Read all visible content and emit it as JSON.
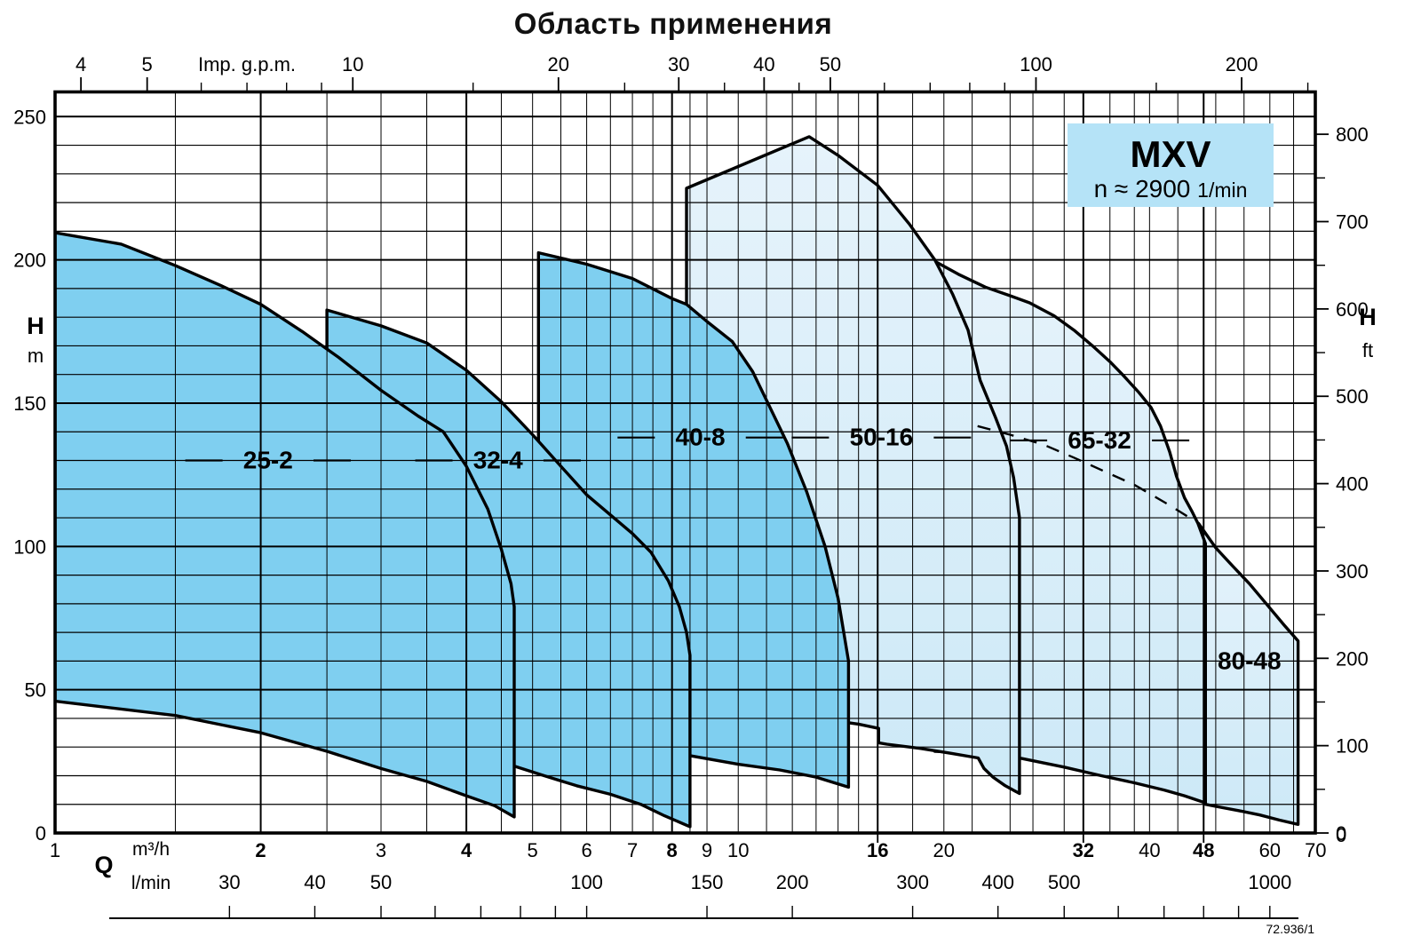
{
  "title": "Область применения",
  "badge": {
    "model": "MXV",
    "speed": "n ≈ 2900",
    "speed_unit": "1/min"
  },
  "footer_ref": "72.936/1",
  "colors": {
    "envelope_dark": "#7fcff0",
    "envelope_light_top": "#e6f3fb",
    "envelope_light_bottom": "#cde9f7",
    "badge_bg": "#b5e3f7",
    "line": "#000000"
  },
  "axes": {
    "top": {
      "unit_label": "Imp. g.p.m.",
      "major_ticks": [
        4,
        5,
        10,
        20,
        30,
        40,
        50,
        100,
        200
      ],
      "minor_ticks": [
        6,
        7,
        8,
        9,
        15,
        25,
        35,
        45,
        60,
        70,
        80,
        90,
        150,
        250
      ],
      "gpm_per_m3h": 3.666
    },
    "left": {
      "name": "H",
      "unit": "m",
      "labeled_ticks": [
        0,
        50,
        100,
        150,
        200,
        250
      ]
    },
    "right": {
      "name": "H",
      "unit": "ft",
      "labeled_ticks": [
        0,
        100,
        200,
        300,
        400,
        500,
        600,
        700,
        800
      ],
      "minor_ticks": [
        50,
        150,
        250,
        350,
        450,
        550,
        650,
        750
      ],
      "m_per_ft": 0.3048
    },
    "bottom": {
      "name": "Q",
      "unit1": "m³/h",
      "m3h_ticks": [
        {
          "v": 1,
          "bold": false
        },
        {
          "v": 2,
          "bold": true
        },
        {
          "v": 3,
          "bold": false
        },
        {
          "v": 4,
          "bold": true
        },
        {
          "v": 5,
          "bold": false
        },
        {
          "v": 6,
          "bold": false
        },
        {
          "v": 7,
          "bold": false
        },
        {
          "v": 8,
          "bold": true
        },
        {
          "v": 9,
          "bold": false
        },
        {
          "v": 10,
          "bold": false
        },
        {
          "v": 16,
          "bold": true
        },
        {
          "v": 20,
          "bold": false
        },
        {
          "v": 32,
          "bold": true
        },
        {
          "v": 40,
          "bold": false
        },
        {
          "v": 48,
          "bold": true
        },
        {
          "v": 60,
          "bold": false
        },
        {
          "v": 70,
          "bold": false
        }
      ],
      "tick_marks_m3h": [
        16,
        32,
        48
      ],
      "unit2": "l/min",
      "lmin_labels": [
        {
          "v": 30,
          "q": 1.8
        },
        {
          "v": 40,
          "q": 2.4
        },
        {
          "v": 50,
          "q": 3.0
        },
        {
          "v": 100,
          "q": 6.0
        },
        {
          "v": 150,
          "q": 9.0
        },
        {
          "v": 200,
          "q": 12.0
        },
        {
          "v": 300,
          "q": 18.0
        },
        {
          "v": 400,
          "q": 24.0
        },
        {
          "v": 500,
          "q": 30.0
        },
        {
          "v": 1000,
          "q": 60.0
        }
      ],
      "lmin_ruler_ticks_q": [
        1.8,
        2.4,
        3,
        3.6,
        4.2,
        4.8,
        5.4,
        6,
        9,
        12,
        18,
        24,
        30,
        36,
        42,
        48,
        54,
        60
      ]
    }
  },
  "chart_data": {
    "type": "area",
    "title": "Область применения",
    "x_scale": "log",
    "x_unit": "m³/h",
    "y_unit": "m",
    "x_range": [
      1,
      70
    ],
    "y_range": [
      0,
      258
    ],
    "grid": {
      "v_minor_m3h": [
        1.5,
        2.5,
        3,
        3.5,
        4.5,
        5,
        5.5,
        6,
        6.5,
        7,
        7.5,
        8.5,
        9,
        10,
        11,
        12,
        13,
        14,
        15,
        18,
        20,
        22,
        25,
        27,
        30,
        35,
        38,
        40,
        44,
        50,
        55,
        60,
        65
      ],
      "v_major_m3h": [
        2,
        4,
        8,
        16,
        32,
        48
      ],
      "h_step_m": 10,
      "h_major_step_m": 50
    },
    "envelopes": [
      {
        "name": "80-48",
        "shade": "light",
        "points": [
          [
            48.3,
            10
          ],
          [
            47.2,
            108
          ],
          [
            50,
            99.5
          ],
          [
            53,
            93
          ],
          [
            56,
            87
          ],
          [
            60,
            78.5
          ],
          [
            63,
            72.5
          ],
          [
            66,
            67
          ],
          [
            66,
            3
          ],
          [
            62,
            4.5
          ],
          [
            58,
            6.3
          ],
          [
            54,
            7.8
          ],
          [
            50,
            9.3
          ]
        ]
      },
      {
        "name": "65-32",
        "shade": "light",
        "points": [
          [
            19.4,
            28.5
          ],
          [
            19.4,
            199.5
          ],
          [
            21,
            195
          ],
          [
            23,
            190.5
          ],
          [
            25,
            187.5
          ],
          [
            26.7,
            185
          ],
          [
            29,
            180.5
          ],
          [
            31,
            175.5
          ],
          [
            33,
            170
          ],
          [
            35,
            164.5
          ],
          [
            36.5,
            160
          ],
          [
            38.5,
            154
          ],
          [
            40.2,
            148.5
          ],
          [
            41.5,
            142
          ],
          [
            42.8,
            133
          ],
          [
            43.8,
            124.5
          ],
          [
            45,
            117
          ],
          [
            46.2,
            112
          ],
          [
            47.1,
            108
          ],
          [
            48.3,
            101
          ],
          [
            48.3,
            10.5
          ],
          [
            45,
            13
          ],
          [
            42,
            15
          ],
          [
            38,
            17.5
          ],
          [
            34,
            20
          ],
          [
            30,
            23
          ],
          [
            26,
            26
          ],
          [
            23,
            27.8
          ]
        ]
      },
      {
        "name": "50-16",
        "shade": "light",
        "points": [
          [
            8.4,
            42
          ],
          [
            8.4,
            225
          ],
          [
            12.7,
            243
          ],
          [
            14,
            236.5
          ],
          [
            16,
            226
          ],
          [
            17.8,
            212.5
          ],
          [
            19.4,
            200
          ],
          [
            20.6,
            188
          ],
          [
            21.7,
            175.5
          ],
          [
            22.6,
            158
          ],
          [
            23.8,
            145
          ],
          [
            24.7,
            135
          ],
          [
            25.3,
            124
          ],
          [
            25.8,
            110
          ],
          [
            25.8,
            13.8
          ],
          [
            24.6,
            16.5
          ],
          [
            23.6,
            19.5
          ],
          [
            22.9,
            22.5
          ],
          [
            22.45,
            26.2
          ],
          [
            20.5,
            27.8
          ],
          [
            18.5,
            29.5
          ],
          [
            16.5,
            31
          ],
          [
            16.05,
            31.5
          ],
          [
            16.05,
            36.5
          ],
          [
            15,
            38
          ],
          [
            14,
            39
          ],
          [
            12,
            40.5
          ],
          [
            10,
            41.3
          ]
        ]
      },
      {
        "name": "40-8",
        "shade": "dark",
        "points": [
          [
            5.1,
            34
          ],
          [
            5.1,
            202.5
          ],
          [
            6,
            198.5
          ],
          [
            7,
            193.5
          ],
          [
            8,
            186.5
          ],
          [
            8.4,
            184.5
          ],
          [
            9,
            178.5
          ],
          [
            9.8,
            171.5
          ],
          [
            10.5,
            161
          ],
          [
            11,
            151
          ],
          [
            11.8,
            136
          ],
          [
            12.6,
            119
          ],
          [
            13.4,
            100
          ],
          [
            14,
            82
          ],
          [
            14.5,
            60
          ],
          [
            14.5,
            16
          ],
          [
            13,
            19.5
          ],
          [
            11.5,
            22
          ],
          [
            10,
            24
          ],
          [
            8.5,
            27
          ],
          [
            7,
            29.5
          ],
          [
            6,
            31.5
          ]
        ]
      },
      {
        "name": "32-4",
        "shade": "dark",
        "points": [
          [
            2.5,
            30
          ],
          [
            2.5,
            182.5
          ],
          [
            3,
            177
          ],
          [
            3.5,
            171
          ],
          [
            4,
            161.5
          ],
          [
            4.5,
            150.5
          ],
          [
            5,
            139
          ],
          [
            5.5,
            128
          ],
          [
            6,
            118
          ],
          [
            6.5,
            111
          ],
          [
            7,
            104.5
          ],
          [
            7.45,
            98
          ],
          [
            7.9,
            88
          ],
          [
            8.2,
            79
          ],
          [
            8.4,
            70
          ],
          [
            8.5,
            62
          ],
          [
            8.5,
            2.2
          ],
          [
            7.8,
            6
          ],
          [
            7.2,
            10
          ],
          [
            6.5,
            13.5
          ],
          [
            5.8,
            16.5
          ],
          [
            5.2,
            20
          ],
          [
            4.72,
            23.2
          ],
          [
            4.2,
            25.5
          ],
          [
            3.5,
            28
          ],
          [
            3,
            29.2
          ]
        ]
      },
      {
        "name": "25-2",
        "shade": "dark",
        "points": [
          [
            1,
            46
          ],
          [
            1,
            209.5
          ],
          [
            1.25,
            205.5
          ],
          [
            1.5,
            198
          ],
          [
            1.75,
            191
          ],
          [
            2,
            184.5
          ],
          [
            2.3,
            175
          ],
          [
            2.6,
            166
          ],
          [
            3,
            154.5
          ],
          [
            3.4,
            145.5
          ],
          [
            3.7,
            140
          ],
          [
            4,
            128
          ],
          [
            4.3,
            113
          ],
          [
            4.5,
            99
          ],
          [
            4.65,
            87
          ],
          [
            4.7,
            79
          ],
          [
            4.7,
            5.6
          ],
          [
            4.4,
            9.5
          ],
          [
            4,
            13
          ],
          [
            3.5,
            18
          ],
          [
            3,
            22.5
          ],
          [
            2.5,
            28.5
          ],
          [
            2,
            35
          ],
          [
            1.5,
            41
          ]
        ]
      }
    ],
    "boundary_dashed": [
      [
        22.4,
        142
      ],
      [
        25,
        139
      ],
      [
        28,
        135.5
      ],
      [
        31,
        131
      ],
      [
        34.5,
        126
      ],
      [
        38,
        121.5
      ],
      [
        42.7,
        114.5
      ],
      [
        46.5,
        109
      ]
    ],
    "labels": [
      {
        "text": "25-2",
        "q": 2.05,
        "h": 130,
        "dashes": true
      },
      {
        "text": "32-4",
        "q": 4.45,
        "h": 130,
        "dashes": true
      },
      {
        "text": "40-8",
        "q": 8.8,
        "h": 138,
        "dashes": true
      },
      {
        "text": "50-16",
        "q": 16.2,
        "h": 138,
        "dashes": true
      },
      {
        "text": "65-32",
        "q": 33.8,
        "h": 137,
        "dashes": true
      },
      {
        "text": "80-48",
        "q": 56,
        "h": 60,
        "dashes": false
      }
    ]
  }
}
